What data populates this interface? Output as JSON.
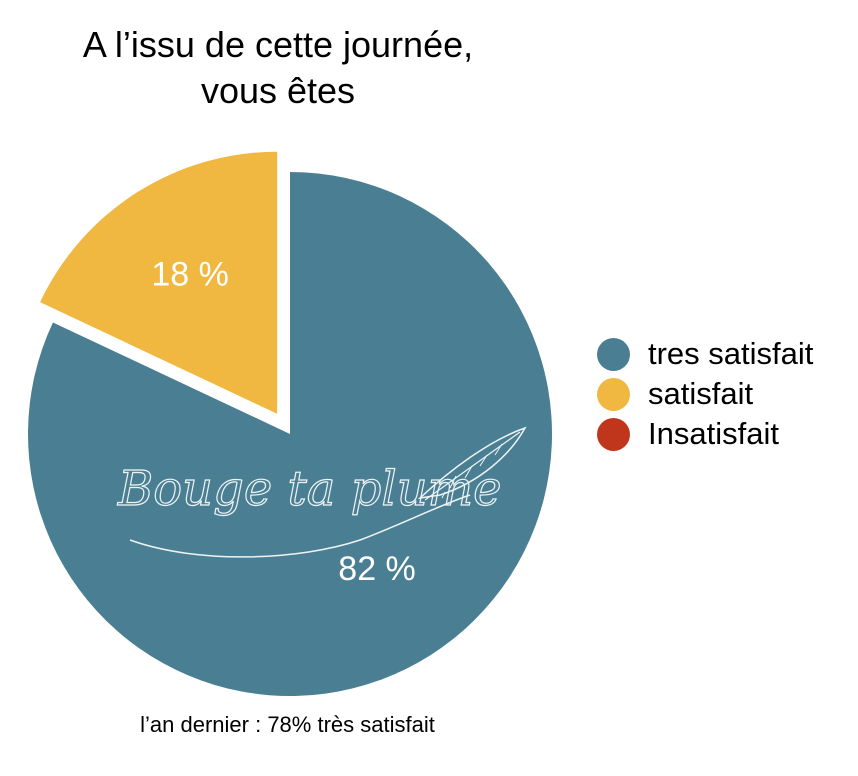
{
  "chart_data": {
    "type": "pie",
    "title": [
      "A l’issu de cette journée,",
      "vous êtes"
    ],
    "slices": [
      {
        "name": "tres satisfait",
        "value": 82,
        "label": "82 %",
        "color": "#4a7f93",
        "exploded": false
      },
      {
        "name": "satisfait",
        "value": 18,
        "label": "18 %",
        "color": "#f0b840",
        "exploded": true
      },
      {
        "name": "Insatisfait",
        "value": 0,
        "label": "",
        "color": "#c0361c",
        "exploded": false
      }
    ],
    "legend_position": "right",
    "footnote": "l’an dernier : 78% très satisfait",
    "watermark": "Bouge ta plume"
  }
}
